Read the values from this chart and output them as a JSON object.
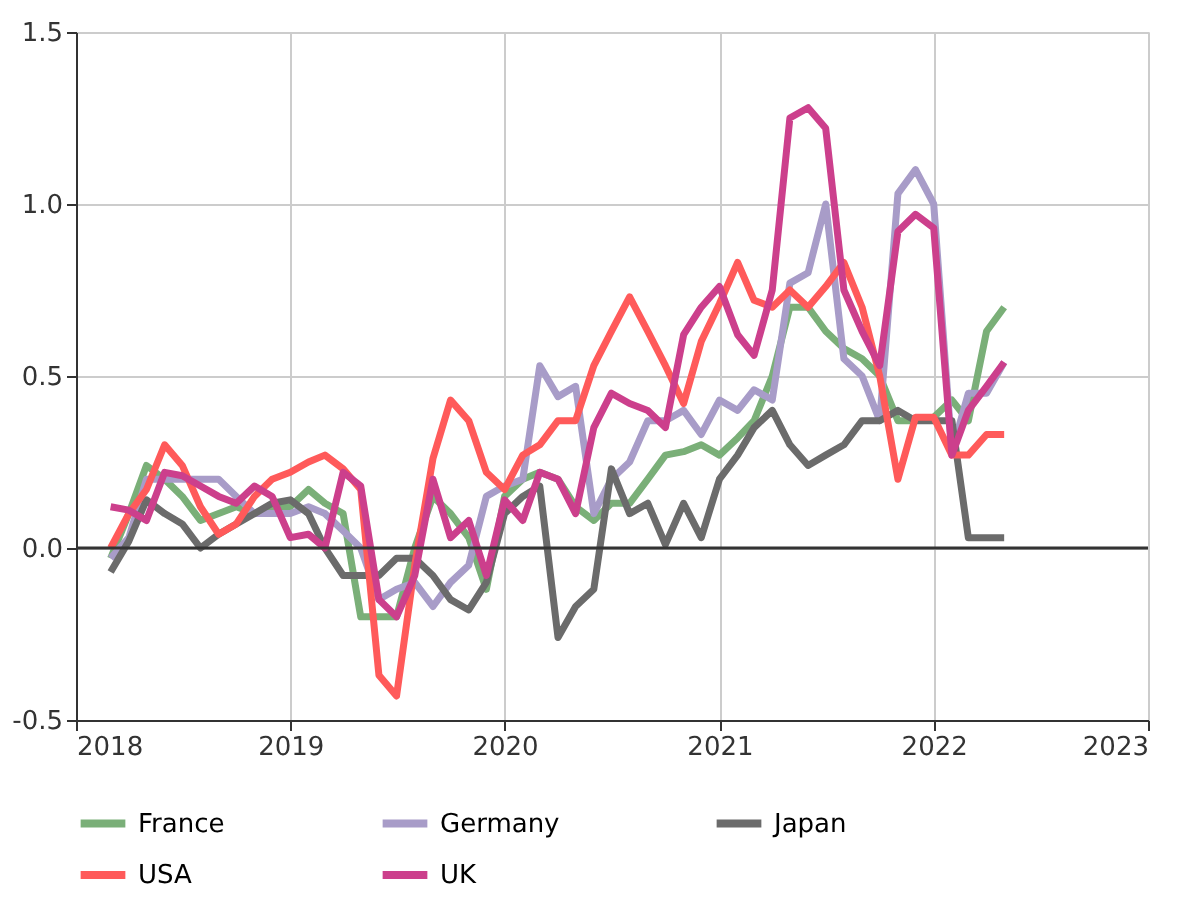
{
  "chart_data": {
    "type": "line",
    "x": [
      "2018-03",
      "2018-04",
      "2018-05",
      "2018-06",
      "2018-07",
      "2018-08",
      "2018-09",
      "2018-10",
      "2018-11",
      "2018-12",
      "2019-01",
      "2019-02",
      "2019-03",
      "2019-04",
      "2019-05",
      "2019-06",
      "2019-07",
      "2019-08",
      "2019-09",
      "2019-10",
      "2019-11",
      "2019-12",
      "2020-01",
      "2020-02",
      "2020-03",
      "2020-04",
      "2020-05",
      "2020-06",
      "2020-07",
      "2020-08",
      "2020-09",
      "2020-10",
      "2020-11",
      "2020-12",
      "2021-01",
      "2021-02",
      "2021-03",
      "2021-04",
      "2021-05",
      "2021-06",
      "2021-07",
      "2021-08",
      "2021-09",
      "2021-10",
      "2021-11",
      "2021-12",
      "2022-01",
      "2022-02",
      "2022-03",
      "2022-04",
      "2022-05"
    ],
    "series": [
      {
        "name": "France",
        "color": "#7aaf78",
        "values": [
          -0.03,
          0.1,
          0.24,
          0.2,
          0.15,
          0.08,
          0.1,
          0.12,
          0.1,
          0.12,
          0.12,
          0.17,
          0.13,
          0.1,
          -0.2,
          -0.2,
          -0.2,
          0.0,
          0.15,
          0.1,
          0.03,
          -0.12,
          0.15,
          0.2,
          0.22,
          0.2,
          0.12,
          0.08,
          0.13,
          0.13,
          0.2,
          0.27,
          0.28,
          0.3,
          0.27,
          0.32,
          0.37,
          0.5,
          0.7,
          0.7,
          0.63,
          0.58,
          0.55,
          0.5,
          0.37,
          0.37,
          0.38,
          0.43,
          0.37,
          0.63,
          0.7
        ]
      },
      {
        "name": "Germany",
        "color": "#a89cc8",
        "values": [
          -0.03,
          0.03,
          0.2,
          0.2,
          0.2,
          0.2,
          0.2,
          0.15,
          0.1,
          0.1,
          0.1,
          0.12,
          0.1,
          0.05,
          0.0,
          -0.15,
          -0.12,
          -0.1,
          -0.17,
          -0.1,
          -0.05,
          0.15,
          0.18,
          0.2,
          0.53,
          0.44,
          0.47,
          0.1,
          0.2,
          0.25,
          0.37,
          0.37,
          0.4,
          0.33,
          0.43,
          0.4,
          0.46,
          0.43,
          0.77,
          0.8,
          1.0,
          0.55,
          0.5,
          0.37,
          1.03,
          1.1,
          1.0,
          0.28,
          0.45,
          0.45,
          0.54
        ]
      },
      {
        "name": "Japan",
        "color": "#6b6b6b",
        "values": [
          -0.07,
          0.02,
          0.14,
          0.1,
          0.07,
          0.0,
          0.04,
          0.07,
          0.1,
          0.13,
          0.14,
          0.1,
          0.0,
          -0.08,
          -0.08,
          -0.08,
          -0.03,
          -0.03,
          -0.08,
          -0.15,
          -0.18,
          -0.1,
          0.1,
          0.15,
          0.18,
          -0.26,
          -0.17,
          -0.12,
          0.23,
          0.1,
          0.13,
          0.01,
          0.13,
          0.03,
          0.2,
          0.27,
          0.35,
          0.4,
          0.3,
          0.24,
          0.27,
          0.3,
          0.37,
          0.37,
          0.4,
          0.37,
          0.37,
          0.37,
          0.03,
          0.03,
          0.03
        ]
      },
      {
        "name": "USA",
        "color": "#ff5a5a",
        "values": [
          0.0,
          0.1,
          0.17,
          0.3,
          0.24,
          0.12,
          0.04,
          0.07,
          0.15,
          0.2,
          0.22,
          0.25,
          0.27,
          0.23,
          0.17,
          -0.37,
          -0.43,
          -0.05,
          0.26,
          0.43,
          0.37,
          0.22,
          0.17,
          0.27,
          0.3,
          0.37,
          0.37,
          0.53,
          0.63,
          0.73,
          0.63,
          0.53,
          0.42,
          0.6,
          0.71,
          0.83,
          0.72,
          0.7,
          0.75,
          0.7,
          0.76,
          0.83,
          0.7,
          0.5,
          0.2,
          0.38,
          0.38,
          0.27,
          0.27,
          0.33,
          0.33
        ]
      },
      {
        "name": "UK",
        "color": "#cc3f8c",
        "values": [
          0.12,
          0.11,
          0.08,
          0.22,
          0.21,
          0.18,
          0.15,
          0.13,
          0.18,
          0.15,
          0.03,
          0.04,
          0.0,
          0.22,
          0.18,
          -0.15,
          -0.2,
          -0.08,
          0.2,
          0.03,
          0.08,
          -0.08,
          0.14,
          0.08,
          0.22,
          0.2,
          0.1,
          0.35,
          0.45,
          0.42,
          0.4,
          0.35,
          0.62,
          0.7,
          0.76,
          0.62,
          0.56,
          0.75,
          1.25,
          1.28,
          1.22,
          0.75,
          0.63,
          0.53,
          0.92,
          0.97,
          0.93,
          0.27,
          0.4,
          0.47,
          0.54
        ]
      }
    ],
    "xlim": [
      "2018",
      "2023"
    ],
    "xticks": [
      "2018",
      "2019",
      "2020",
      "2021",
      "2022",
      "2023"
    ],
    "ylim": [
      -0.5,
      1.5
    ],
    "yticks": [
      {
        "value": -0.5,
        "label": "-0.5"
      },
      {
        "value": 0,
        "label": "0.0"
      },
      {
        "value": 0.5,
        "label": "0.5"
      },
      {
        "value": 1,
        "label": "1.0"
      },
      {
        "value": 1.5,
        "label": "1.5"
      }
    ],
    "ref_lines": [
      {
        "axis": "y",
        "value": 0,
        "color": "#333333"
      }
    ],
    "grid": true,
    "legend": "bottom",
    "marker": "none",
    "line_style": "solid"
  }
}
